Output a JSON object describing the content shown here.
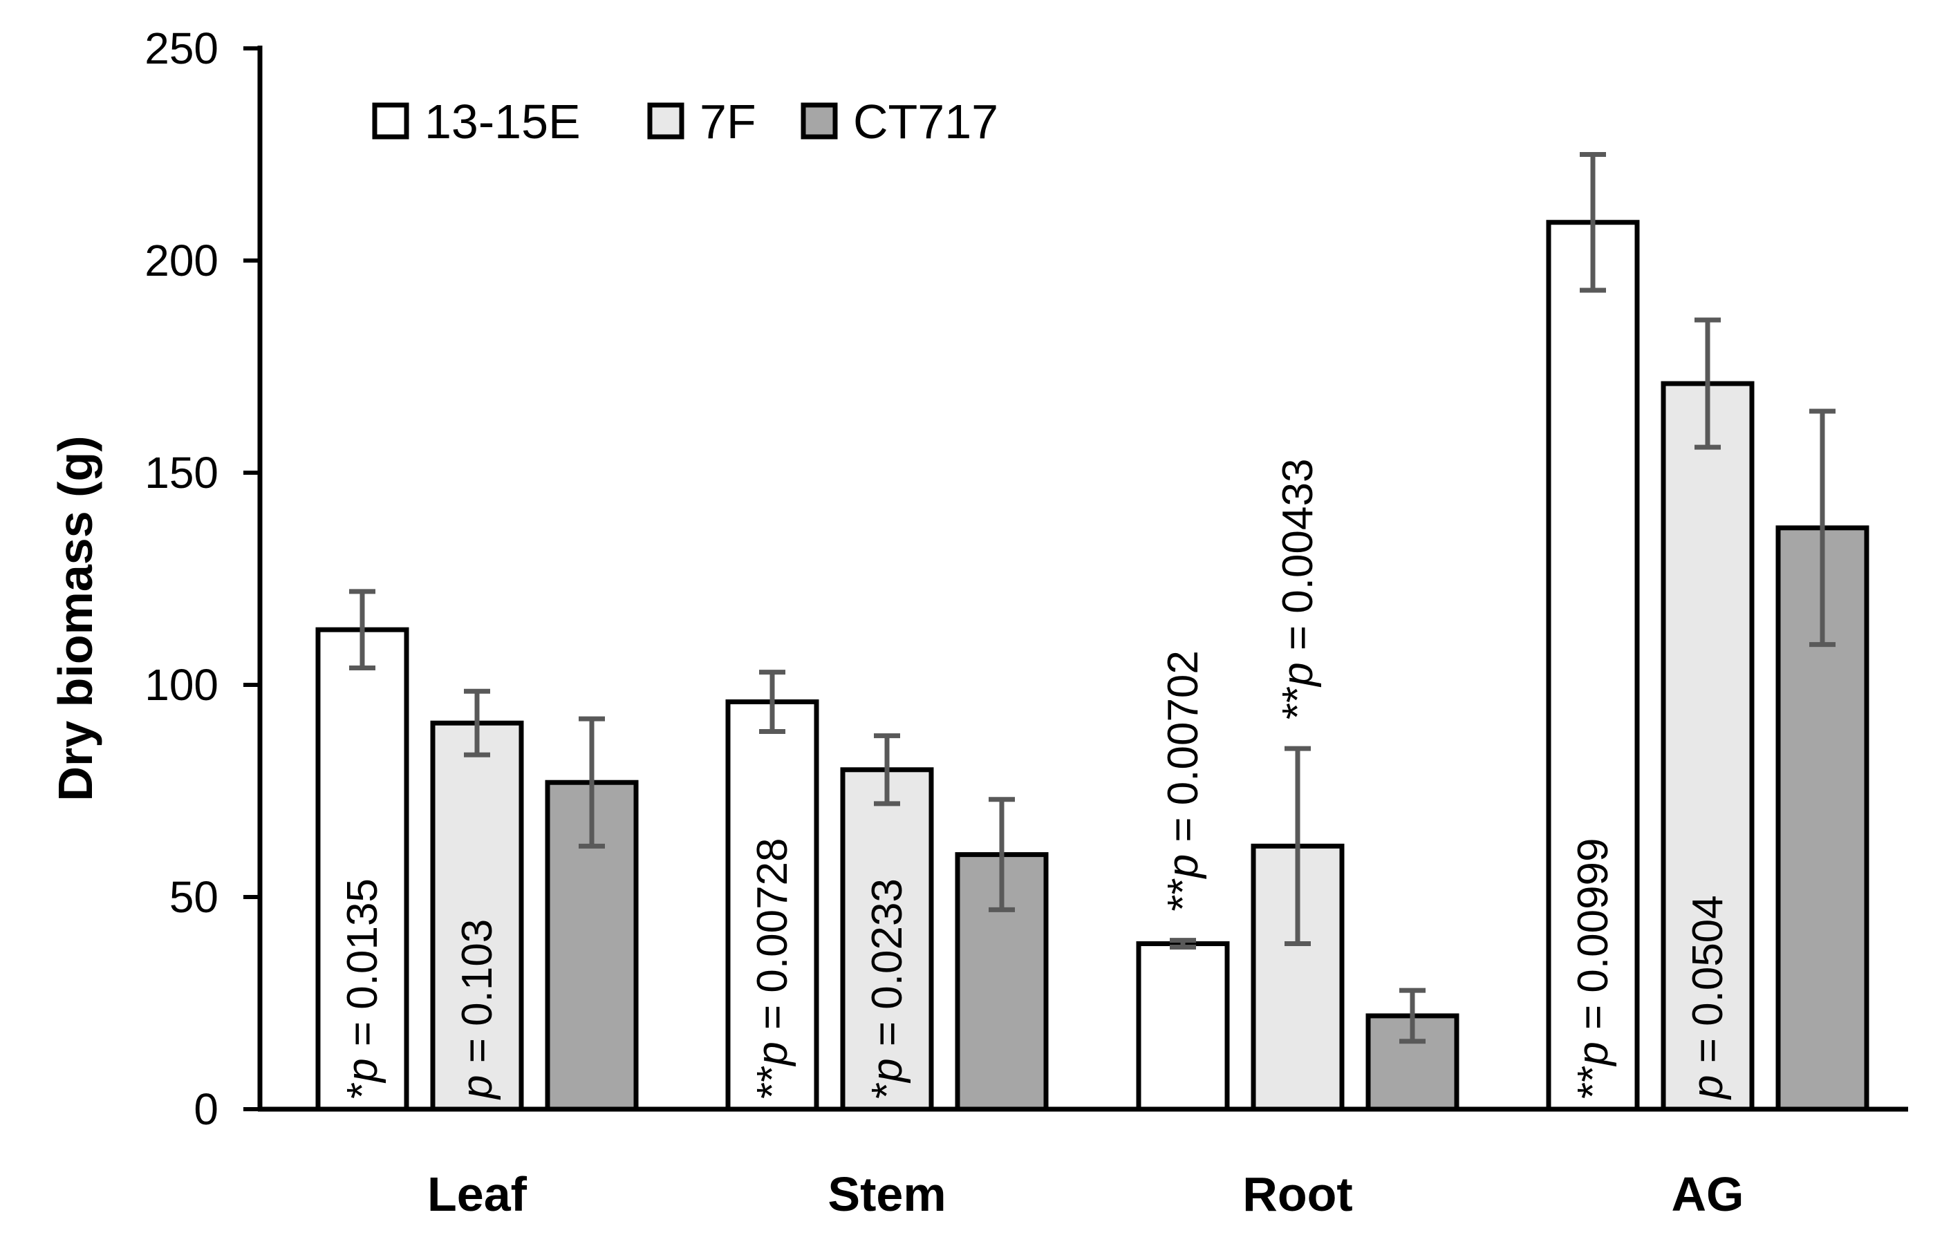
{
  "chart_data": {
    "type": "bar",
    "title": "",
    "xlabel": "",
    "ylabel": "Dry biomass (g)",
    "ylim": [
      0,
      250
    ],
    "yticks": [
      0,
      50,
      100,
      150,
      200,
      250
    ],
    "grid": false,
    "legend_position": "top-left",
    "categories": [
      "Leaf",
      "Stem",
      "Root",
      "AG"
    ],
    "series": [
      {
        "name": "13-15E",
        "color": "#ffffff",
        "values": [
          113,
          96,
          39,
          209
        ],
        "errors": [
          9,
          7,
          0.8,
          16
        ]
      },
      {
        "name": "7F",
        "color": "#e8e8e8",
        "values": [
          91,
          80,
          62,
          171
        ],
        "errors": [
          7.5,
          8,
          23,
          15
        ]
      },
      {
        "name": "CT717",
        "color": "#a6a6a6",
        "values": [
          77,
          60,
          22,
          137
        ],
        "errors": [
          15,
          13,
          6,
          27.5
        ]
      }
    ],
    "annotations": [
      {
        "category": "Leaf",
        "series": "13-15E",
        "stars": "*",
        "p_label": "p",
        "text": " = 0.0135",
        "placement": "inside"
      },
      {
        "category": "Leaf",
        "series": "7F",
        "stars": "",
        "p_label": "p",
        "text": " = 0.103",
        "placement": "inside"
      },
      {
        "category": "Stem",
        "series": "13-15E",
        "stars": "**",
        "p_label": "p",
        "text": " = 0.00728",
        "placement": "inside"
      },
      {
        "category": "Stem",
        "series": "7F",
        "stars": "*",
        "p_label": "p",
        "text": " = 0.0233",
        "placement": "inside"
      },
      {
        "category": "Root",
        "series": "13-15E",
        "stars": "**",
        "p_label": "p",
        "text": " = 0.00702",
        "placement": "above"
      },
      {
        "category": "Root",
        "series": "7F",
        "stars": "**",
        "p_label": "p",
        "text": " = 0.00433",
        "placement": "above"
      },
      {
        "category": "AG",
        "series": "13-15E",
        "stars": "**",
        "p_label": "p",
        "text": " = 0.00999",
        "placement": "inside"
      },
      {
        "category": "AG",
        "series": "7F",
        "stars": "",
        "p_label": "p",
        "text": " = 0.0504",
        "placement": "inside"
      }
    ],
    "colors": {
      "axis": "#000000",
      "error_bar": "#595959",
      "bar_edge": "#000000"
    }
  }
}
